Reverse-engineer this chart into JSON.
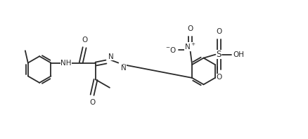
{
  "figsize": [
    4.38,
    1.98
  ],
  "dpi": 100,
  "bg_color": "#ffffff",
  "line_color": "#2a2a2a",
  "line_width": 1.3,
  "font_size": 7.5,
  "r_hex": 0.38,
  "xlim": [
    0,
    8.76
  ],
  "ylim": [
    0,
    3.96
  ]
}
